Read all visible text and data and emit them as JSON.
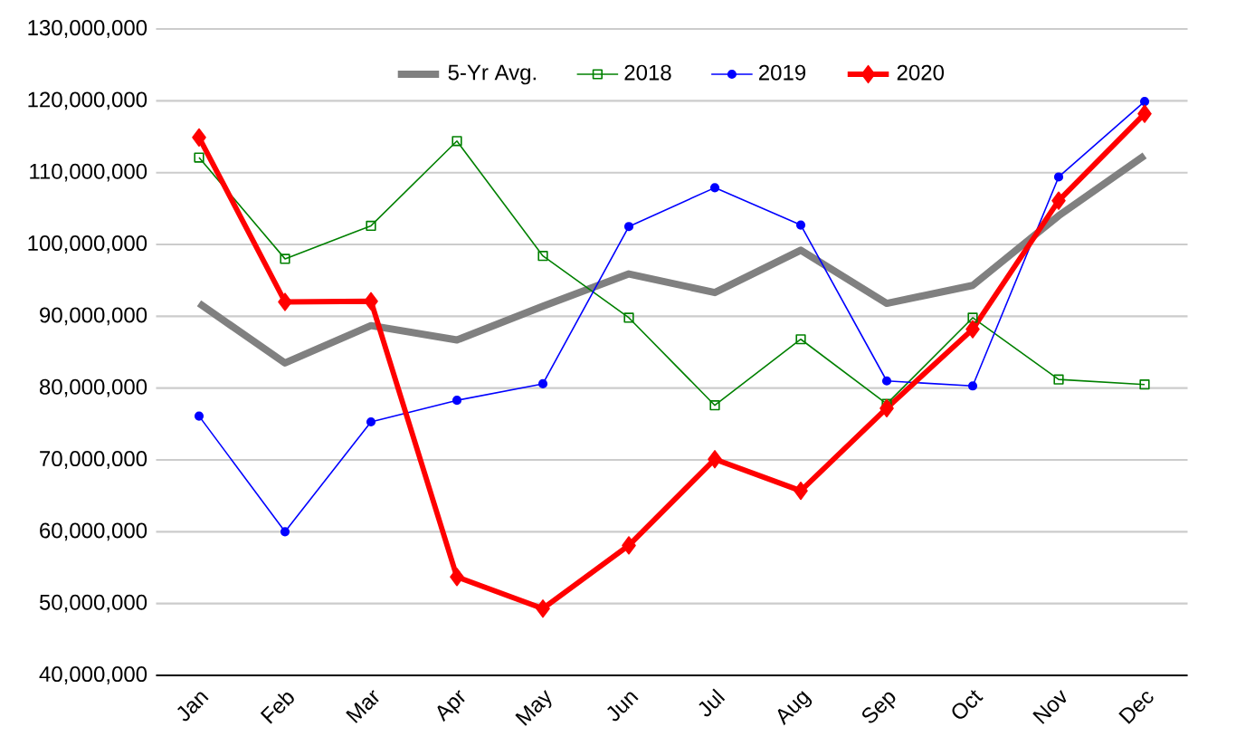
{
  "chart_data": {
    "type": "line",
    "categories": [
      "Jan",
      "Feb",
      "Mar",
      "Apr",
      "May",
      "Jun",
      "Jul",
      "Aug",
      "Sep",
      "Oct",
      "Nov",
      "Dec"
    ],
    "series": [
      {
        "name": "5-Yr Avg.",
        "color": "#808080",
        "marker": "none",
        "values": [
          91800000,
          83500000,
          88700000,
          86700000,
          91400000,
          95900000,
          93300000,
          99200000,
          91800000,
          94300000,
          104000000,
          112400000
        ]
      },
      {
        "name": "2018",
        "color": "#008000",
        "marker": "square",
        "values": [
          112100000,
          98000000,
          102600000,
          114400000,
          98400000,
          89800000,
          77600000,
          86800000,
          77800000,
          89800000,
          81200000,
          80500000
        ]
      },
      {
        "name": "2019",
        "color": "#0000ff",
        "marker": "circle",
        "values": [
          76100000,
          60000000,
          75300000,
          78300000,
          80600000,
          102500000,
          107900000,
          102700000,
          81000000,
          80300000,
          109400000,
          119900000
        ]
      },
      {
        "name": "2020",
        "color": "#ff0000",
        "marker": "diamond",
        "values": [
          114900000,
          92000000,
          92100000,
          53700000,
          49300000,
          58100000,
          70100000,
          65700000,
          77200000,
          88200000,
          106100000,
          118200000
        ]
      }
    ],
    "ylim": [
      40000000,
      130000000
    ],
    "yticks": [
      {
        "value": 40000000,
        "label": "40,000,000"
      },
      {
        "value": 50000000,
        "label": "50,000,000"
      },
      {
        "value": 60000000,
        "label": "60,000,000"
      },
      {
        "value": 70000000,
        "label": "70,000,000"
      },
      {
        "value": 80000000,
        "label": "80,000,000"
      },
      {
        "value": 90000000,
        "label": "90,000,000"
      },
      {
        "value": 100000000,
        "label": "100,000,000"
      },
      {
        "value": 110000000,
        "label": "110,000,000"
      },
      {
        "value": 120000000,
        "label": "120,000,000"
      },
      {
        "value": 130000000,
        "label": "130,000,000"
      }
    ],
    "grid": "y",
    "legend": "top"
  }
}
